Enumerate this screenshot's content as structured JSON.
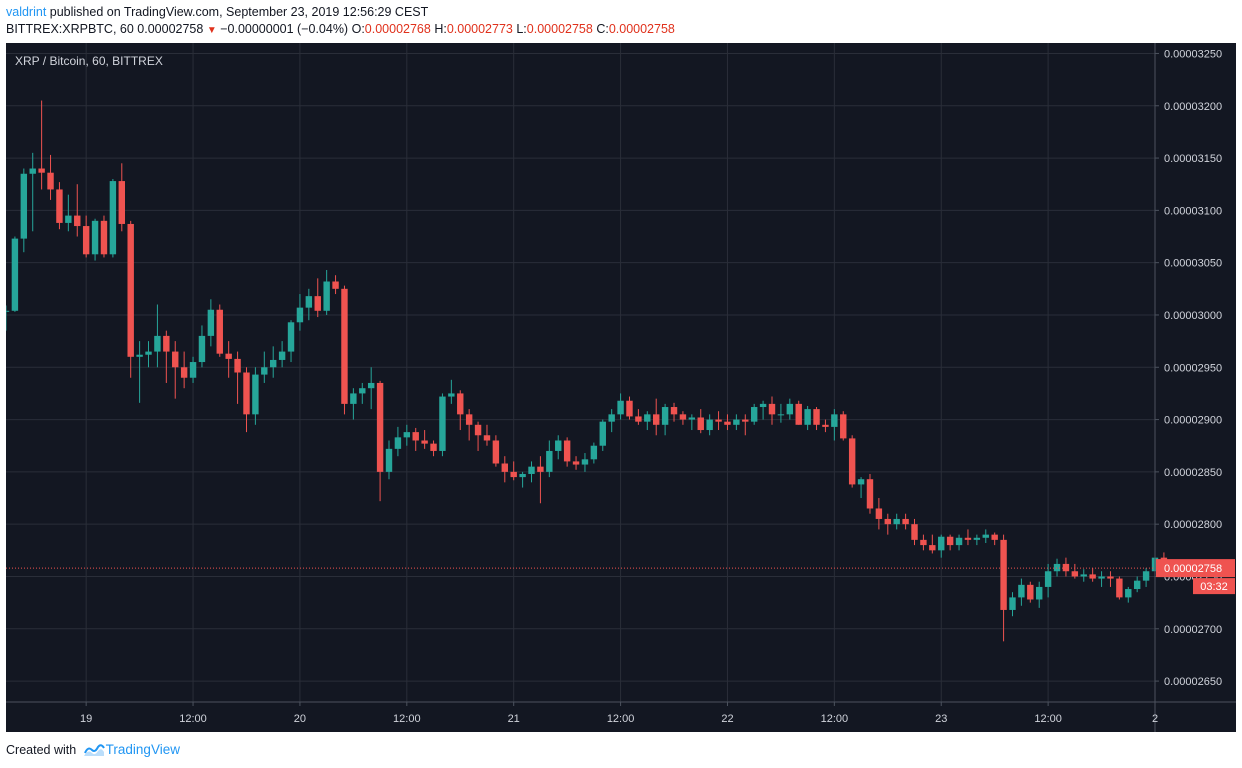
{
  "header": {
    "author": "valdrint",
    "published_text": " published on TradingView.com, September 23, 2019 12:56:29 CEST",
    "symbol": "BITTREX:XRPBTC, 60",
    "price": "0.00002758",
    "arrow": "▼",
    "change": "−0.00000001 (−0.04%)",
    "o_label": "O:",
    "o_value": "0.00002768",
    "h_label": "H:",
    "h_value": "0.00002773",
    "l_label": "L:",
    "l_value": "0.00002758",
    "c_label": "C:",
    "c_value": "0.00002758"
  },
  "footer": {
    "created_with": "Created with",
    "brand": "TradingView"
  },
  "colors": {
    "background": "#131722",
    "up": "#26a69a",
    "down": "#ef5350",
    "grid": "#2a2e39",
    "axis_text": "#d1d4dc",
    "price_line": "#ef5350"
  },
  "chart_data": {
    "type": "candlestick",
    "title": "XRP / Bitcoin, 60, BITTREX",
    "interval_minutes": 60,
    "ylim": [
      2.63e-05,
      3.26e-05
    ],
    "y_ticks": [
      "0.00002650",
      "0.00002700",
      "0.00002750",
      "0.00002800",
      "0.00002850",
      "0.00002900",
      "0.00002950",
      "0.00003000",
      "0.00003050",
      "0.00003100",
      "0.00003150",
      "0.00003200",
      "0.00003250"
    ],
    "x_ticks": [
      {
        "t": "2019-09-19 00:00",
        "label": "19"
      },
      {
        "t": "2019-09-19 12:00",
        "label": "12:00"
      },
      {
        "t": "2019-09-20 00:00",
        "label": "20"
      },
      {
        "t": "2019-09-20 12:00",
        "label": "12:00"
      },
      {
        "t": "2019-09-21 00:00",
        "label": "21"
      },
      {
        "t": "2019-09-21 12:00",
        "label": "12:00"
      },
      {
        "t": "2019-09-22 00:00",
        "label": "22"
      },
      {
        "t": "2019-09-22 12:00",
        "label": "12:00"
      },
      {
        "t": "2019-09-23 00:00",
        "label": "23"
      },
      {
        "t": "2019-09-23 12:00",
        "label": "12:00"
      },
      {
        "t": "2019-09-24 00:00",
        "label": "2"
      }
    ],
    "first_candle": "2019-09-18 15:00",
    "last_price": "0.00002758",
    "last_price_value": 2.758e-05,
    "countdown": "03:32",
    "candles": [
      [
        3.003,
        3.009,
        2.985,
        3.004
      ],
      [
        3.004,
        3.075,
        3.003,
        3.073
      ],
      [
        3.073,
        3.14,
        3.06,
        3.135
      ],
      [
        3.135,
        3.155,
        3.08,
        3.14
      ],
      [
        3.14,
        3.205,
        3.12,
        3.136
      ],
      [
        3.136,
        3.153,
        3.11,
        3.12
      ],
      [
        3.12,
        3.127,
        3.082,
        3.088
      ],
      [
        3.088,
        3.115,
        3.08,
        3.095
      ],
      [
        3.095,
        3.125,
        3.075,
        3.085
      ],
      [
        3.085,
        3.095,
        3.055,
        3.058
      ],
      [
        3.058,
        3.092,
        3.052,
        3.09
      ],
      [
        3.09,
        3.095,
        3.055,
        3.058
      ],
      [
        3.058,
        3.13,
        3.055,
        3.128
      ],
      [
        3.128,
        3.145,
        3.08,
        3.087
      ],
      [
        3.087,
        3.09,
        2.94,
        2.96
      ],
      [
        2.96,
        2.975,
        2.916,
        2.962
      ],
      [
        2.962,
        2.975,
        2.95,
        2.965
      ],
      [
        2.965,
        3.01,
        2.95,
        2.98
      ],
      [
        2.98,
        2.985,
        2.935,
        2.965
      ],
      [
        2.965,
        2.975,
        2.92,
        2.95
      ],
      [
        2.95,
        2.965,
        2.93,
        2.94
      ],
      [
        2.94,
        2.96,
        2.935,
        2.955
      ],
      [
        2.955,
        2.99,
        2.95,
        2.98
      ],
      [
        2.98,
        3.015,
        2.97,
        3.005
      ],
      [
        3.005,
        3.01,
        2.96,
        2.963
      ],
      [
        2.963,
        2.975,
        2.94,
        2.958
      ],
      [
        2.958,
        2.965,
        2.915,
        2.945
      ],
      [
        2.945,
        2.95,
        2.888,
        2.905
      ],
      [
        2.905,
        2.95,
        2.895,
        2.943
      ],
      [
        2.943,
        2.965,
        2.935,
        2.95
      ],
      [
        2.95,
        2.97,
        2.94,
        2.957
      ],
      [
        2.957,
        2.975,
        2.95,
        2.965
      ],
      [
        2.965,
        2.995,
        2.955,
        2.993
      ],
      [
        2.993,
        3.02,
        2.985,
        3.007
      ],
      [
        3.007,
        3.025,
        2.995,
        3.018
      ],
      [
        3.018,
        3.035,
        2.998,
        3.004
      ],
      [
        3.004,
        3.043,
        3.0,
        3.032
      ],
      [
        3.032,
        3.038,
        3.02,
        3.025
      ],
      [
        3.025,
        3.028,
        2.905,
        2.915
      ],
      [
        2.915,
        2.93,
        2.9,
        2.925
      ],
      [
        2.925,
        2.935,
        2.915,
        2.93
      ],
      [
        2.93,
        2.95,
        2.91,
        2.935
      ],
      [
        2.935,
        2.937,
        2.822,
        2.85
      ],
      [
        2.85,
        2.88,
        2.843,
        2.872
      ],
      [
        2.872,
        2.893,
        2.865,
        2.883
      ],
      [
        2.883,
        2.895,
        2.875,
        2.888
      ],
      [
        2.888,
        2.892,
        2.87,
        2.88
      ],
      [
        2.88,
        2.89,
        2.872,
        2.877
      ],
      [
        2.877,
        2.88,
        2.865,
        2.87
      ],
      [
        2.87,
        2.925,
        2.865,
        2.922
      ],
      [
        2.922,
        2.938,
        2.915,
        2.925
      ],
      [
        2.925,
        2.928,
        2.89,
        2.905
      ],
      [
        2.905,
        2.91,
        2.88,
        2.895
      ],
      [
        2.895,
        2.898,
        2.87,
        2.885
      ],
      [
        2.885,
        2.895,
        2.875,
        2.88
      ],
      [
        2.88,
        2.885,
        2.855,
        2.858
      ],
      [
        2.858,
        2.865,
        2.84,
        2.85
      ],
      [
        2.85,
        2.86,
        2.842,
        2.845
      ],
      [
        2.845,
        2.85,
        2.835,
        2.848
      ],
      [
        2.848,
        2.86,
        2.84,
        2.855
      ],
      [
        2.855,
        2.865,
        2.82,
        2.85
      ],
      [
        2.85,
        2.88,
        2.845,
        2.87
      ],
      [
        2.87,
        2.885,
        2.862,
        2.88
      ],
      [
        2.88,
        2.883,
        2.855,
        2.86
      ],
      [
        2.86,
        2.865,
        2.852,
        2.857
      ],
      [
        2.857,
        2.868,
        2.85,
        2.862
      ],
      [
        2.862,
        2.878,
        2.858,
        2.875
      ],
      [
        2.875,
        2.9,
        2.87,
        2.898
      ],
      [
        2.898,
        2.91,
        2.888,
        2.905
      ],
      [
        2.905,
        2.925,
        2.9,
        2.918
      ],
      [
        2.918,
        2.922,
        2.9,
        2.903
      ],
      [
        2.903,
        2.91,
        2.895,
        2.898
      ],
      [
        2.898,
        2.908,
        2.89,
        2.905
      ],
      [
        2.905,
        2.92,
        2.885,
        2.895
      ],
      [
        2.895,
        2.915,
        2.885,
        2.912
      ],
      [
        2.912,
        2.916,
        2.898,
        2.905
      ],
      [
        2.905,
        2.908,
        2.895,
        2.9
      ],
      [
        2.9,
        2.905,
        2.89,
        2.902
      ],
      [
        2.902,
        2.91,
        2.887,
        2.89
      ],
      [
        2.89,
        2.905,
        2.885,
        2.9
      ],
      [
        2.9,
        2.908,
        2.89,
        2.898
      ],
      [
        2.898,
        2.905,
        2.89,
        2.895
      ],
      [
        2.895,
        2.905,
        2.89,
        2.9
      ],
      [
        2.9,
        2.905,
        2.885,
        2.898
      ],
      [
        2.898,
        2.915,
        2.895,
        2.912
      ],
      [
        2.912,
        2.918,
        2.9,
        2.915
      ],
      [
        2.915,
        2.922,
        2.895,
        2.905
      ],
      [
        2.905,
        2.915,
        2.897,
        2.905
      ],
      [
        2.905,
        2.92,
        2.9,
        2.915
      ],
      [
        2.915,
        2.918,
        2.895,
        2.895
      ],
      [
        2.895,
        2.913,
        2.89,
        2.91
      ],
      [
        2.91,
        2.912,
        2.89,
        2.895
      ],
      [
        2.895,
        2.9,
        2.888,
        2.893
      ],
      [
        2.893,
        2.91,
        2.88,
        2.905
      ],
      [
        2.905,
        2.908,
        2.88,
        2.882
      ],
      [
        2.882,
        2.885,
        2.835,
        2.838
      ],
      [
        2.838,
        2.845,
        2.825,
        2.843
      ],
      [
        2.843,
        2.848,
        2.81,
        2.815
      ],
      [
        2.815,
        2.825,
        2.795,
        2.805
      ],
      [
        2.805,
        2.81,
        2.79,
        2.8
      ],
      [
        2.8,
        2.81,
        2.795,
        2.805
      ],
      [
        2.805,
        2.81,
        2.795,
        2.8
      ],
      [
        2.8,
        2.805,
        2.78,
        2.785
      ],
      [
        2.785,
        2.79,
        2.775,
        2.78
      ],
      [
        2.78,
        2.79,
        2.772,
        2.775
      ],
      [
        2.775,
        2.79,
        2.768,
        2.788
      ],
      [
        2.788,
        2.79,
        2.775,
        2.78
      ],
      [
        2.78,
        2.79,
        2.775,
        2.787
      ],
      [
        2.787,
        2.795,
        2.78,
        2.785
      ],
      [
        2.785,
        2.79,
        2.78,
        2.787
      ],
      [
        2.787,
        2.795,
        2.782,
        2.79
      ],
      [
        2.79,
        2.792,
        2.78,
        2.785
      ],
      [
        2.785,
        2.79,
        2.688,
        2.718
      ],
      [
        2.718,
        2.735,
        2.712,
        2.73
      ],
      [
        2.73,
        2.748,
        2.722,
        2.742
      ],
      [
        2.742,
        2.745,
        2.725,
        2.728
      ],
      [
        2.728,
        2.745,
        2.72,
        2.74
      ],
      [
        2.74,
        2.762,
        2.73,
        2.755
      ],
      [
        2.755,
        2.767,
        2.75,
        2.762
      ],
      [
        2.762,
        2.768,
        2.75,
        2.755
      ],
      [
        2.755,
        2.762,
        2.748,
        2.75
      ],
      [
        2.75,
        2.757,
        2.745,
        2.752
      ],
      [
        2.752,
        2.758,
        2.745,
        2.748
      ],
      [
        2.748,
        2.755,
        2.74,
        2.75
      ],
      [
        2.75,
        2.755,
        2.74,
        2.748
      ],
      [
        2.748,
        2.75,
        2.728,
        2.73
      ],
      [
        2.73,
        2.74,
        2.725,
        2.738
      ],
      [
        2.738,
        2.75,
        2.735,
        2.746
      ],
      [
        2.746,
        2.758,
        2.74,
        2.755
      ],
      [
        2.755,
        2.768,
        2.745,
        2.768
      ],
      [
        2.768,
        2.773,
        2.758,
        2.758
      ]
    ]
  }
}
